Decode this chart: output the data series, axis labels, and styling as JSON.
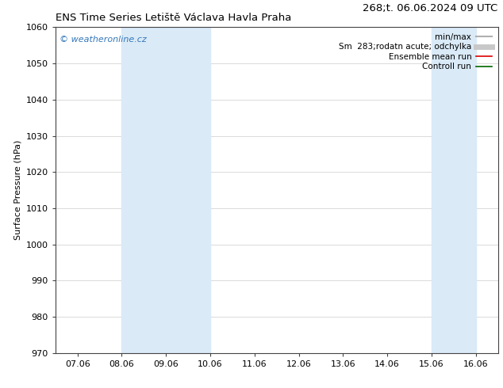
{
  "title_left": "ENS Time Series Letiště Václava Havla Praha",
  "title_right": "268;t. 06.06.2024 09 UTC",
  "ylabel": "Surface Pressure (hPa)",
  "ylim": [
    970,
    1060
  ],
  "yticks": [
    970,
    980,
    990,
    1000,
    1010,
    1020,
    1030,
    1040,
    1050,
    1060
  ],
  "xtick_labels": [
    "07.06",
    "08.06",
    "09.06",
    "10.06",
    "11.06",
    "12.06",
    "13.06",
    "14.06",
    "15.06",
    "16.06"
  ],
  "xtick_positions": [
    0,
    1,
    2,
    3,
    4,
    5,
    6,
    7,
    8,
    9
  ],
  "background_color": "#ffffff",
  "plot_background_color": "#ffffff",
  "shaded_bands": [
    {
      "x_start": 1,
      "x_end": 3,
      "color": "#daeaf7"
    },
    {
      "x_start": 8,
      "x_end": 9,
      "color": "#daeaf7"
    }
  ],
  "watermark_text": "© weatheronline.cz",
  "watermark_color": "#3377bb",
  "legend_entries": [
    {
      "label": "min/max",
      "color": "#b0b0b0",
      "lw": 1.5,
      "ls": "-"
    },
    {
      "label": "Sm  283;rodatn acute; odchylka",
      "color": "#c8c8c8",
      "lw": 5,
      "ls": "-"
    },
    {
      "label": "Ensemble mean run",
      "color": "#dd0000",
      "lw": 1.2,
      "ls": "-"
    },
    {
      "label": "Controll run",
      "color": "#006600",
      "lw": 1.2,
      "ls": "-"
    }
  ],
  "fig_width": 6.34,
  "fig_height": 4.9,
  "dpi": 100,
  "title_fontsize": 9.5,
  "axis_fontsize": 8,
  "tick_fontsize": 8,
  "legend_fontsize": 7.5
}
